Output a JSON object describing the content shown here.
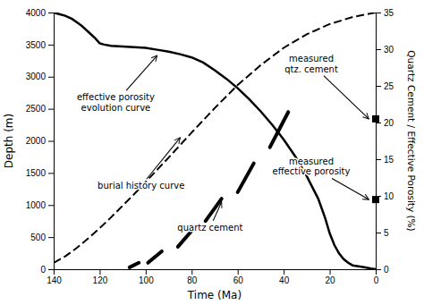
{
  "chart_data": {
    "type": "line",
    "x_label": "Time (Ma)",
    "y_label": "Depth (m)",
    "y2_label": "Quartz Cement / Effective Porosity (%)",
    "xlim": [
      140,
      0
    ],
    "ylim": [
      0,
      4000
    ],
    "y2lim": [
      0,
      35
    ],
    "xticks": [
      140,
      120,
      100,
      80,
      60,
      40,
      20,
      0
    ],
    "yticks": [
      0,
      500,
      1000,
      1500,
      2000,
      2500,
      3000,
      3500,
      4000
    ],
    "y2ticks": [
      0,
      5,
      10,
      15,
      20,
      25,
      30,
      35
    ],
    "grid": false,
    "series": [
      {
        "type": "line",
        "line_style": "dashed",
        "color": "#000000",
        "x": [
          140,
          135,
          130,
          125,
          120,
          115,
          110,
          105,
          100,
          90,
          80,
          70,
          60,
          50,
          40,
          30,
          20,
          10,
          0
        ],
        "values": [
          100,
          200,
          330,
          480,
          640,
          810,
          990,
          1170,
          1360,
          1740,
          2130,
          2510,
          2870,
          3180,
          3450,
          3660,
          3820,
          3930,
          4000
        ]
      },
      {
        "type": "line",
        "line_style": "solid",
        "color": "#000000",
        "x": [
          140,
          138,
          135,
          132,
          130,
          128,
          125,
          122,
          120,
          118,
          115,
          110,
          105,
          100,
          95,
          90,
          85,
          80,
          75,
          70,
          65,
          60,
          55,
          50,
          45,
          40,
          35,
          30,
          25,
          22,
          20,
          18,
          16,
          14,
          12,
          10,
          5,
          2,
          0
        ],
        "values": [
          4000,
          3980,
          3950,
          3900,
          3850,
          3800,
          3700,
          3600,
          3520,
          3500,
          3480,
          3470,
          3460,
          3450,
          3420,
          3390,
          3350,
          3300,
          3220,
          3100,
          2970,
          2820,
          2650,
          2460,
          2250,
          2020,
          1760,
          1450,
          1100,
          800,
          560,
          380,
          250,
          160,
          100,
          60,
          30,
          10,
          0
        ]
      },
      {
        "type": "segment",
        "color": "#000000",
        "x": [
          107,
          103
        ],
        "values": [
          30,
          100
        ]
      },
      {
        "type": "segment",
        "color": "#000000",
        "x": [
          99,
          93
        ],
        "values": [
          100,
          280
        ]
      },
      {
        "type": "segment",
        "color": "#000000",
        "x": [
          86,
          80
        ],
        "values": [
          350,
          600
        ]
      },
      {
        "type": "segment",
        "color": "#000000",
        "x": [
          74,
          67
        ],
        "values": [
          750,
          1100
        ]
      },
      {
        "type": "segment",
        "color": "#000000",
        "x": [
          60,
          53
        ],
        "values": [
          1200,
          1650
        ]
      },
      {
        "type": "segment",
        "color": "#000000",
        "x": [
          46,
          38
        ],
        "values": [
          1900,
          2450
        ]
      },
      {
        "type": "scatter",
        "marker": "square",
        "color": "#000000",
        "axis": "y2",
        "x": [
          0
        ],
        "values": [
          20.5
        ]
      },
      {
        "type": "scatter",
        "marker": "square",
        "color": "#000000",
        "axis": "y2",
        "x": [
          0
        ],
        "values": [
          9.5
        ]
      }
    ],
    "annotations": [
      {
        "text": "effective porosity\nevolution curve",
        "xy": [
          95,
          3330
        ],
        "xytext": [
          113,
          2600
        ]
      },
      {
        "text": "burial history curve",
        "xy": [
          85,
          2050
        ],
        "xytext": [
          102,
          1300
        ]
      },
      {
        "text": "quartz cement",
        "xy": [
          67,
          1050
        ],
        "xytext": [
          72,
          650
        ]
      },
      {
        "text": "measured\nqtz. cement",
        "axis": "y2",
        "xy": [
          3,
          20.5
        ],
        "xytext": [
          28,
          28
        ]
      },
      {
        "text": "measured\neffective porosity",
        "axis": "y2",
        "xy": [
          3,
          9.5
        ],
        "xytext": [
          28,
          14
        ]
      }
    ]
  }
}
